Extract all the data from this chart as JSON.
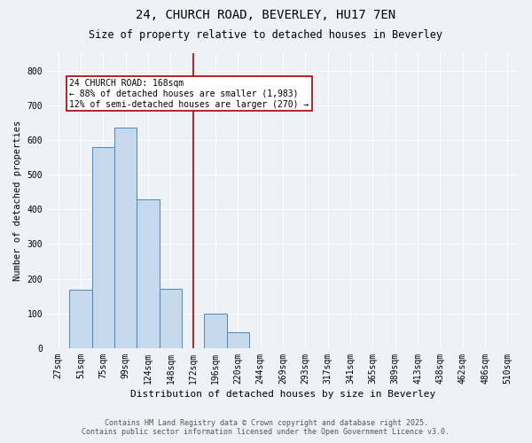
{
  "title1": "24, CHURCH ROAD, BEVERLEY, HU17 7EN",
  "title2": "Size of property relative to detached houses in Beverley",
  "xlabel": "Distribution of detached houses by size in Beverley",
  "ylabel": "Number of detached properties",
  "bin_labels": [
    "27sqm",
    "51sqm",
    "75sqm",
    "99sqm",
    "124sqm",
    "148sqm",
    "172sqm",
    "196sqm",
    "220sqm",
    "244sqm",
    "269sqm",
    "293sqm",
    "317sqm",
    "341sqm",
    "365sqm",
    "389sqm",
    "413sqm",
    "438sqm",
    "462sqm",
    "486sqm",
    "510sqm"
  ],
  "bar_values": [
    0,
    168,
    580,
    635,
    428,
    170,
    0,
    100,
    45,
    0,
    0,
    0,
    0,
    0,
    0,
    0,
    0,
    0,
    0,
    0,
    0
  ],
  "bar_color": "#c6d9ec",
  "bar_edge_color": "#4f86b8",
  "vline_index": 6,
  "vline_color": "#aa0000",
  "annotation_line1": "24 CHURCH ROAD: 168sqm",
  "annotation_line2": "← 88% of detached houses are smaller (1,983)",
  "annotation_line3": "12% of semi-detached houses are larger (270) →",
  "annotation_box_color": "#ffffff",
  "annotation_box_edge": "#aa0000",
  "ylim": [
    0,
    850
  ],
  "yticks": [
    0,
    100,
    200,
    300,
    400,
    500,
    600,
    700,
    800
  ],
  "footer1": "Contains HM Land Registry data © Crown copyright and database right 2025.",
  "footer2": "Contains public sector information licensed under the Open Government Licence v3.0.",
  "bg_color": "#eef2f7",
  "grid_color": "#ffffff",
  "title1_fontsize": 10,
  "title2_fontsize": 8.5,
  "xlabel_fontsize": 8,
  "ylabel_fontsize": 7.5,
  "tick_fontsize": 7,
  "footer_fontsize": 6,
  "annot_fontsize": 7
}
